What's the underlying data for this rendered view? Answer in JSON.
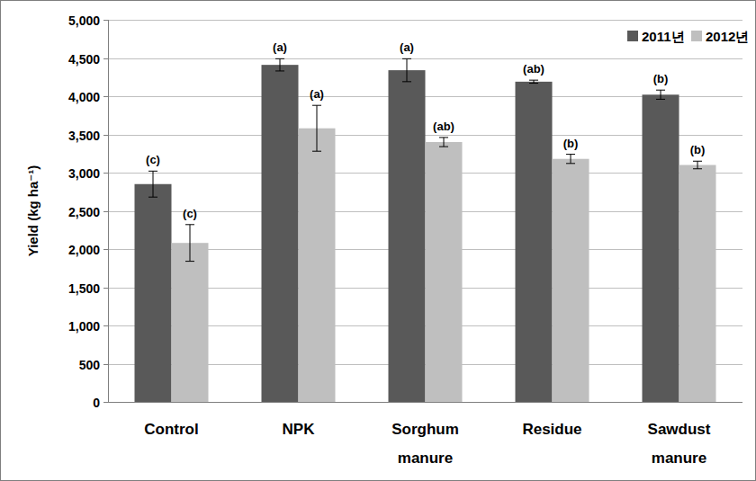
{
  "chart_data": {
    "type": "bar",
    "y_label": "Yield (kg ha⁻¹)",
    "categories": [
      "Control",
      "NPK",
      "Sorghum manure",
      "Residue",
      "Sawdust manure"
    ],
    "series": [
      {
        "name": "2011년",
        "color": "#595959",
        "values": [
          2850,
          4410,
          4340,
          4190,
          4020
        ],
        "errors": [
          170,
          80,
          150,
          20,
          60
        ],
        "annotations": [
          "(c)",
          "(a)",
          "(a)",
          "(ab)",
          "(b)"
        ]
      },
      {
        "name": "2012년",
        "color": "#bfbfbf",
        "values": [
          2080,
          3580,
          3400,
          3180,
          3100
        ],
        "errors": [
          240,
          300,
          60,
          60,
          50
        ],
        "annotations": [
          "(c)",
          "(a)",
          "(ab)",
          "(b)",
          "(b)"
        ]
      }
    ],
    "ylim": [
      0,
      5000
    ],
    "yticks": [
      {
        "value": 0,
        "label": "0"
      },
      {
        "value": 500,
        "label": "500"
      },
      {
        "value": 1000,
        "label": "1,000"
      },
      {
        "value": 1500,
        "label": "1,500"
      },
      {
        "value": 2000,
        "label": "2,000"
      },
      {
        "value": 2500,
        "label": "2,500"
      },
      {
        "value": 3000,
        "label": "3,000"
      },
      {
        "value": 3500,
        "label": "3,500"
      },
      {
        "value": 4000,
        "label": "4,000"
      },
      {
        "value": 4500,
        "label": "4,500"
      },
      {
        "value": 5000,
        "label": "5,000"
      }
    ],
    "grid": true,
    "legend": "upper right"
  }
}
